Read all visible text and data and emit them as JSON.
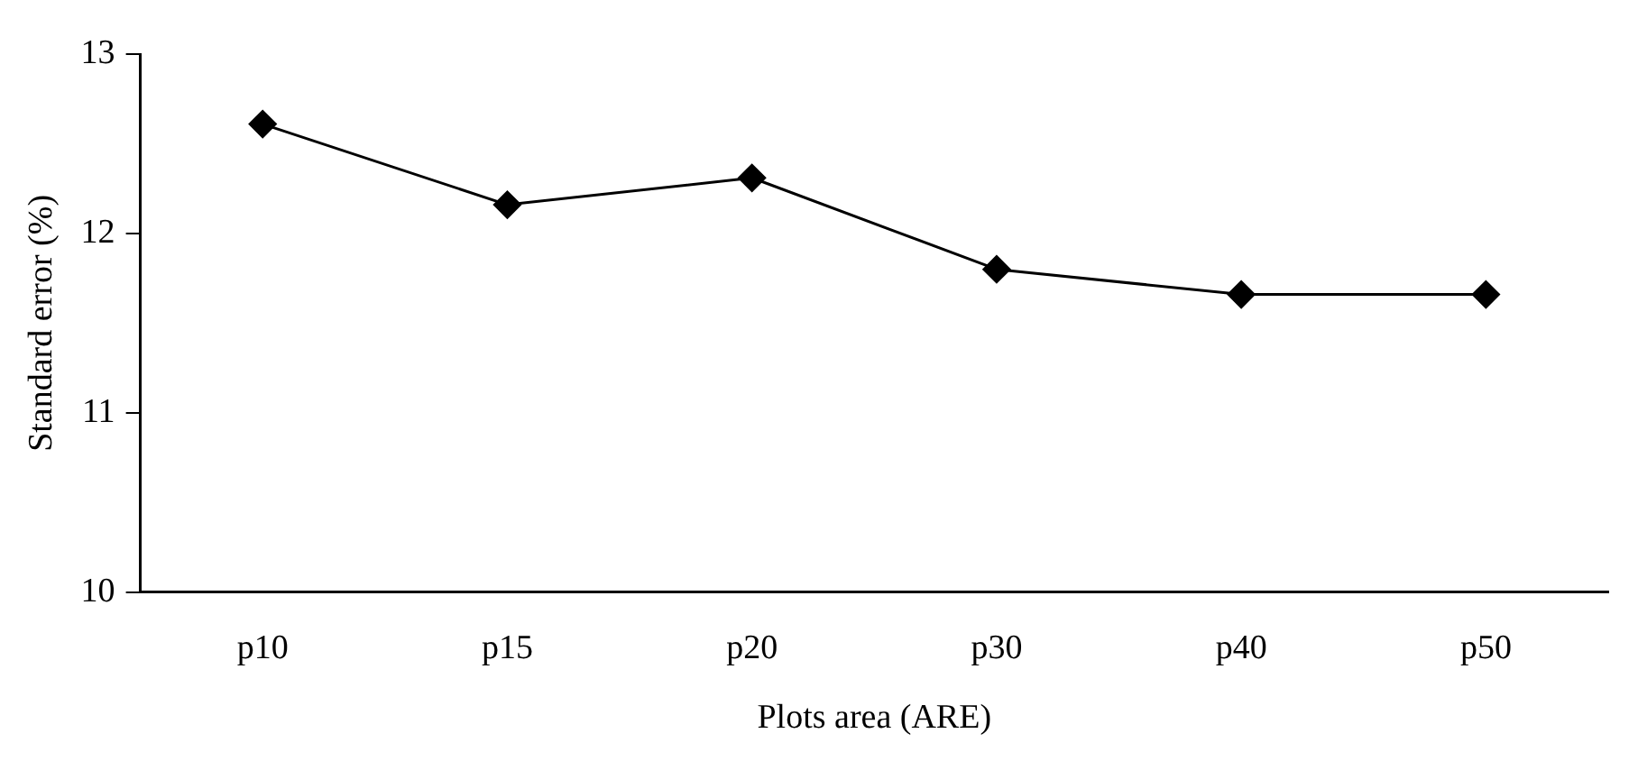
{
  "chart_data": {
    "type": "line",
    "xlabel": "Plots area (ARE)",
    "ylabel": "Standard error (%)",
    "categories": [
      "p10",
      "p15",
      "p20",
      "p30",
      "p40",
      "p50"
    ],
    "series": [
      {
        "color": "#000000",
        "values": [
          12.61,
          12.16,
          12.31,
          11.8,
          11.66,
          11.66
        ]
      }
    ],
    "ylim": [
      10,
      13
    ],
    "yticks": [
      10,
      11,
      12,
      13
    ],
    "grid": false,
    "legend": false,
    "marker": "diamond",
    "line_style": "solid"
  }
}
